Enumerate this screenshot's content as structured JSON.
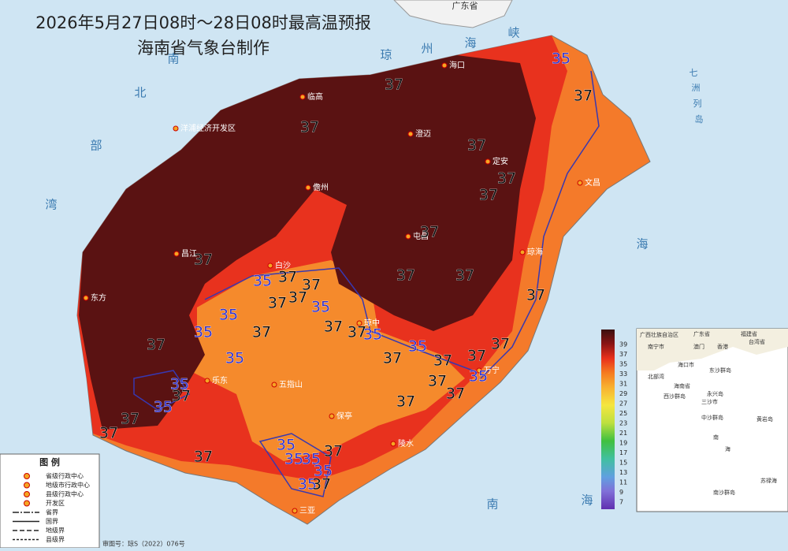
{
  "header": {
    "title": "2026年5月27日08时～28日08时最高温预报",
    "subtitle": "海南省气象台制作"
  },
  "sea_labels": [
    "北",
    "部",
    "湾",
    "琼",
    "州",
    "海",
    "峡",
    "南",
    "海",
    "南",
    "海",
    "七",
    "洲",
    "列",
    "岛",
    "广东省"
  ],
  "cities": [
    "海口",
    "临高",
    "澄迈",
    "定安",
    "儋州",
    "屯昌",
    "文昌",
    "琼海",
    "东方",
    "白沙",
    "琼中",
    "昌江",
    "万宁",
    "五指山",
    "乐东",
    "保亭",
    "陵水",
    "三亚",
    "洋浦经济开发区"
  ],
  "contour_labels": [
    35,
    37,
    37,
    37,
    37,
    37,
    37,
    37,
    37,
    37,
    37,
    35,
    37,
    37,
    37,
    37,
    35,
    35,
    37,
    35,
    37,
    37,
    35,
    37,
    37,
    35,
    35,
    37,
    37,
    37,
    37,
    35,
    37,
    37,
    37,
    35,
    35,
    37,
    37,
    37,
    37,
    35,
    37,
    35,
    35,
    35,
    35,
    37
  ],
  "colorbar_ticks": [
    39,
    37,
    35,
    33,
    31,
    29,
    27,
    25,
    23,
    21,
    19,
    17,
    15,
    13,
    11,
    9,
    7
  ],
  "legend": {
    "title": "图  例",
    "items": [
      "省级行政中心",
      "地级市行政中心",
      "县级行政中心",
      "开发区",
      "省界",
      "国界",
      "地级界",
      "县级界"
    ]
  },
  "inset": {
    "labels": [
      "广西壮族自治区",
      "广东省",
      "福建省",
      "南宁市",
      "澳门",
      "香港",
      "台湾省",
      "海口市",
      "北部湾",
      "海南省",
      "东沙群岛",
      "西沙群岛",
      "三沙市",
      "永兴岛",
      "中沙群岛",
      "黄岩岛",
      "南",
      "海",
      "南沙群岛",
      "苏禄海"
    ]
  },
  "footer": "审图号：琼S（2022）076号"
}
